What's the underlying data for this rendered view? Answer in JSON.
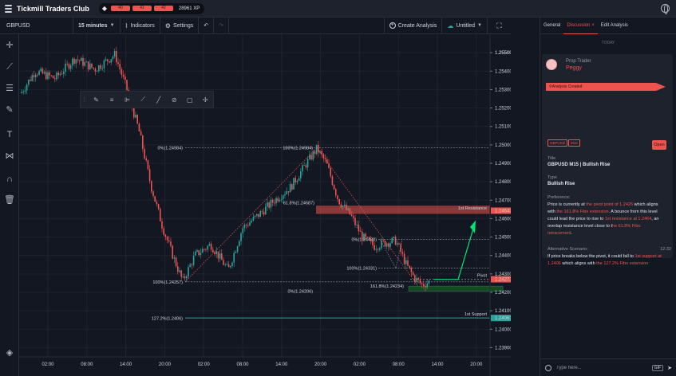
{
  "app": {
    "brand": "Tickmill Traders Club",
    "levels": [
      "40",
      "41",
      "42"
    ],
    "xp": "28961 XP"
  },
  "toolbar": {
    "symbol": "GBPUSD",
    "timeframe": "15 minutes",
    "indicators": "Indicators",
    "settings": "Settings",
    "create_analysis": "Create Analysis",
    "layout_name": "Untitled"
  },
  "icons": {
    "globe": "globe-icon",
    "undo": "undo-icon",
    "redo": "redo-icon",
    "fullscreen": "fullscreen-icon"
  },
  "chart_data": {
    "type": "candlestick",
    "symbol": "GBPUSD",
    "interval": "15m",
    "price_ticks": [
      "1.25500",
      "1.25400",
      "1.25300",
      "1.25200",
      "1.25100",
      "1.25000",
      "1.24900",
      "1.24800",
      "1.24700",
      "1.24600",
      "1.24500",
      "1.24400",
      "1.24300",
      "1.24200",
      "1.24100",
      "1.24000",
      "1.23900"
    ],
    "time_ticks": [
      "02:00",
      "08:00",
      "14:00",
      "20:00",
      "02:00",
      "08:00",
      "14:00",
      "20:00",
      "02:00",
      "08:00",
      "14:00",
      "20:00"
    ],
    "price_labels": [
      {
        "text": "1.25500",
        "price": 1.255
      },
      {
        "text": "1.24643",
        "price": 1.24643,
        "color": "#ef5350"
      },
      {
        "text": "1.24271",
        "price": 1.24271,
        "color": "#ef5350"
      },
      {
        "text": "1.24061",
        "price": 1.24061,
        "color": "#26a69a"
      }
    ],
    "ylim": [
      1.2385,
      1.256
    ],
    "fib_retracement": [
      {
        "label": "0%(1.24984)",
        "price": 1.24984
      },
      {
        "label": "100%(1.24984)",
        "price": 1.24984
      },
      {
        "label": "61.8%(1.24687)",
        "price": 1.24687
      },
      {
        "label": "100%(1.24257)",
        "price": 1.24257
      },
      {
        "label": "0%(1.24488)",
        "price": 1.24488
      },
      {
        "label": "100%(1.24331)",
        "price": 1.24331
      },
      {
        "label": "161.8%(1.24234)",
        "price": 1.24234
      },
      {
        "label": "0%(1.24206)",
        "price": 1.24206
      },
      {
        "label": "127.2%(1.2406)",
        "price": 1.2406
      }
    ],
    "zones": [
      {
        "label": "1st Resistance",
        "color": "#ef5350"
      },
      {
        "label": "Pivot",
        "color": "#787b86"
      },
      {
        "label": "1st Support",
        "color": "#26a69a"
      }
    ]
  },
  "panel": {
    "tabs": [
      "General",
      "Discussion",
      "Edit Analysis"
    ],
    "today": "TODAY",
    "role": "Prop Trader",
    "user": "Peggy",
    "ribbon": "Analysis Created",
    "tag_symbol": "GBPUSD",
    "tag_tf": "M15",
    "open": "Open",
    "title_label": "Title",
    "title_value": "GBPUSD M15 | Bullish Rise",
    "type_label": "Type",
    "type_value": "Bullish Rise",
    "pref_label": "Preference:",
    "pref_text_1": "Price is currently at ",
    "pref_hl_1": "the pivot point of 1.2426",
    "pref_text_2": " which aligns with ",
    "pref_hl_2": "the 161.8% Fibo extension",
    "pref_text_3": ". A bounce from this level could lead the price to rise to ",
    "pref_hl_3": "1st resistance at 1.2464",
    "pref_text_4": ", an overlap resistance level close to t",
    "pref_hl_4": "he 61.8% Fibo retracement",
    "pref_text_5": ".",
    "alt_label": "Alternative Scenario:",
    "alt_text_1": "If price breaks below the pivot, it could fall to ",
    "alt_hl_1": "1st support at 1.2406",
    "alt_text_2": " which aligns with ",
    "alt_hl_2": "the 127.2% Fibo extension",
    "time": "12:32",
    "message_placeholder": "Type here...",
    "gif": "GIF"
  }
}
